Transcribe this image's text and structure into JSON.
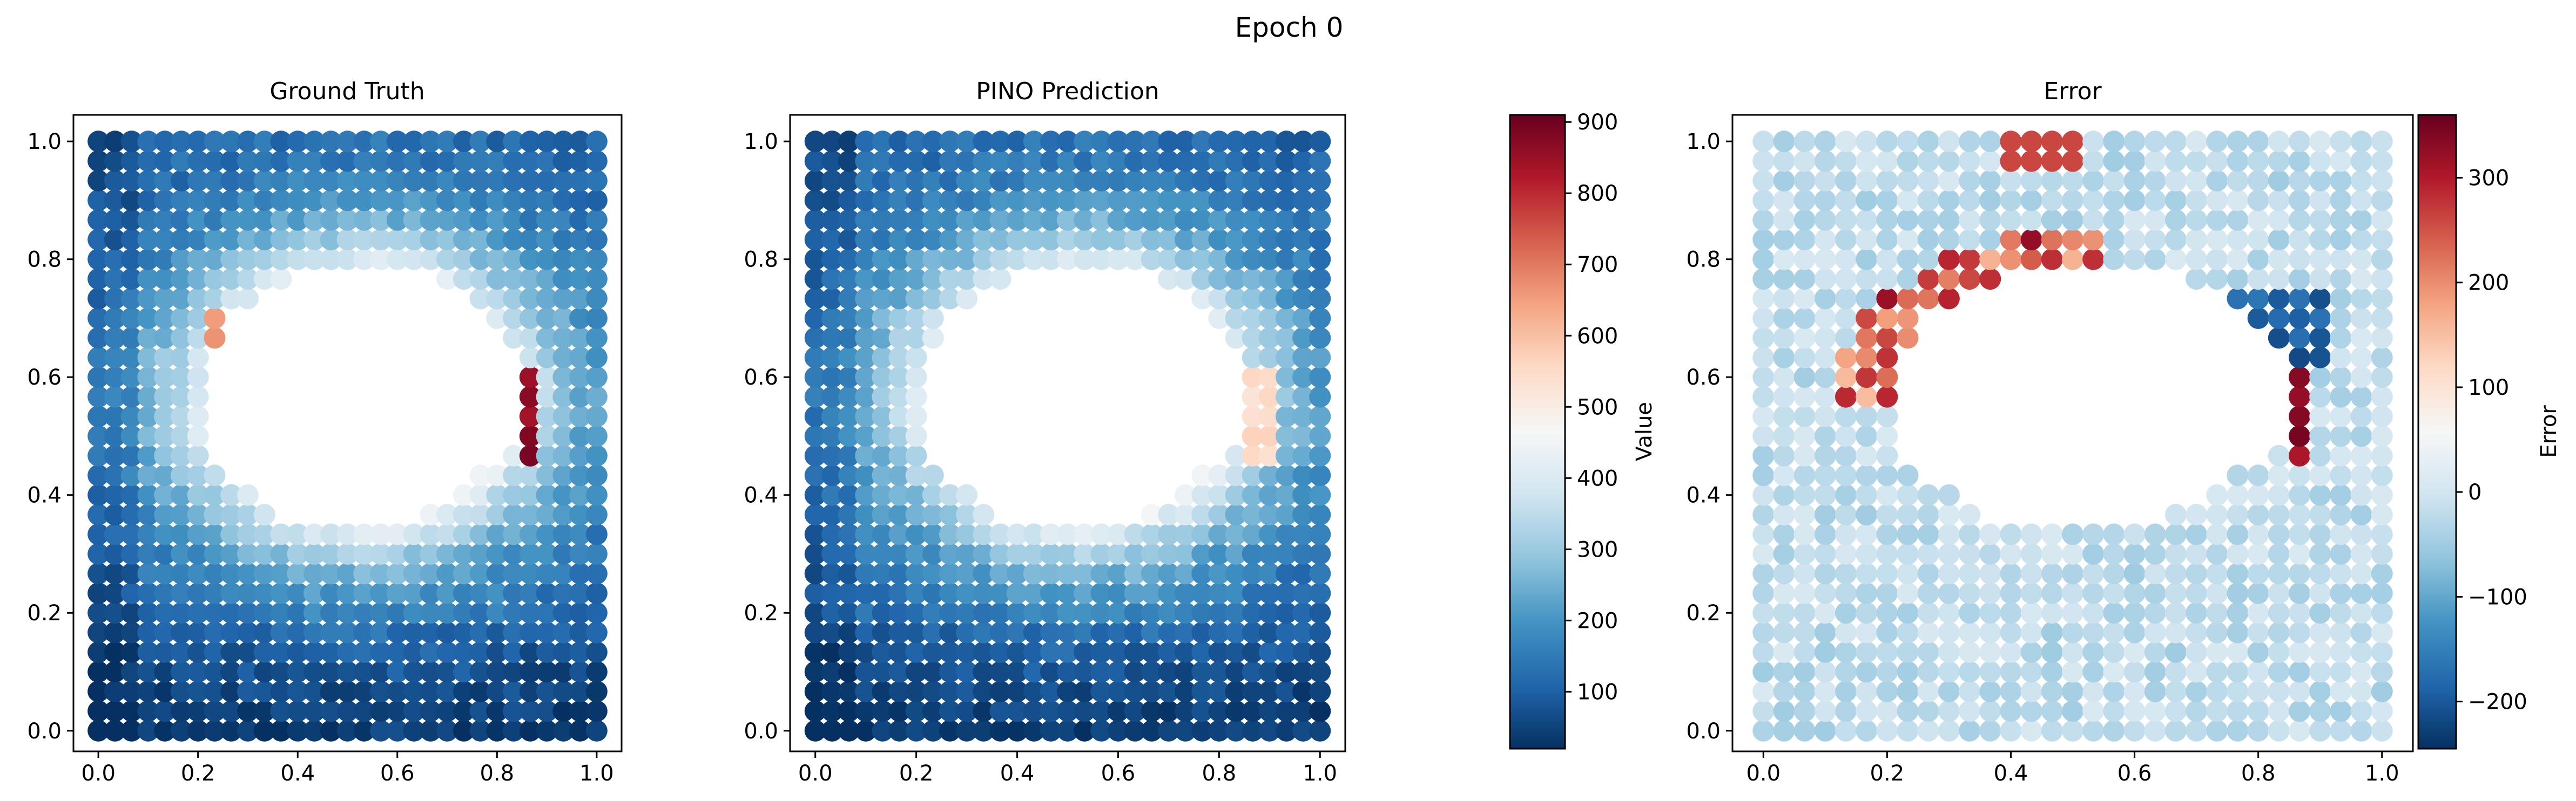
{
  "figure": {
    "suptitle": "Epoch 0"
  },
  "chart_data": [
    {
      "type": "scatter",
      "title": "Ground Truth",
      "xlabel": "",
      "ylabel": "",
      "xlim": [
        -0.05,
        1.05
      ],
      "ylim": [
        -0.035,
        1.045
      ],
      "xticks": [
        "0.0",
        "0.2",
        "0.4",
        "0.6",
        "0.8",
        "1.0"
      ],
      "yticks": [
        "0.0",
        "0.2",
        "0.4",
        "0.6",
        "0.8",
        "1.0"
      ],
      "colormap": "RdBu_r",
      "color_range": [
        20,
        910
      ],
      "field": "ground_truth"
    },
    {
      "type": "scatter",
      "title": "PINO Prediction",
      "xlabel": "",
      "ylabel": "",
      "xlim": [
        -0.05,
        1.05
      ],
      "ylim": [
        -0.035,
        1.045
      ],
      "xticks": [
        "0.0",
        "0.2",
        "0.4",
        "0.6",
        "0.8",
        "1.0"
      ],
      "yticks": [
        "0.0",
        "0.2",
        "0.4",
        "0.6",
        "0.8",
        "1.0"
      ],
      "colormap": "RdBu_r",
      "color_range": [
        20,
        910
      ],
      "field": "prediction",
      "colorbar": {
        "label": "Value",
        "range": [
          20,
          910
        ],
        "ticks": [
          "100",
          "200",
          "300",
          "400",
          "500",
          "600",
          "700",
          "800",
          "900"
        ]
      }
    },
    {
      "type": "scatter",
      "title": "Error",
      "xlabel": "",
      "ylabel": "",
      "xlim": [
        -0.05,
        1.05
      ],
      "ylim": [
        -0.035,
        1.045
      ],
      "xticks": [
        "0.0",
        "0.2",
        "0.4",
        "0.6",
        "0.8",
        "1.0"
      ],
      "yticks": [
        "0.0",
        "0.2",
        "0.4",
        "0.6",
        "0.8",
        "1.0"
      ],
      "colormap": "RdBu_r",
      "color_range": [
        -245,
        360
      ],
      "field": "error",
      "colorbar": {
        "label": "Error",
        "range": [
          -245,
          360
        ],
        "ticks": [
          "−200",
          "−100",
          "0",
          "100",
          "200",
          "300"
        ]
      }
    }
  ],
  "colors": {
    "colormap_RdBu_r": [
      "#053061",
      "#2166ac",
      "#4393c3",
      "#92c5de",
      "#d1e5f0",
      "#f7f7f7",
      "#fddbc7",
      "#f4a582",
      "#d6604d",
      "#b2182b",
      "#67001f"
    ]
  }
}
